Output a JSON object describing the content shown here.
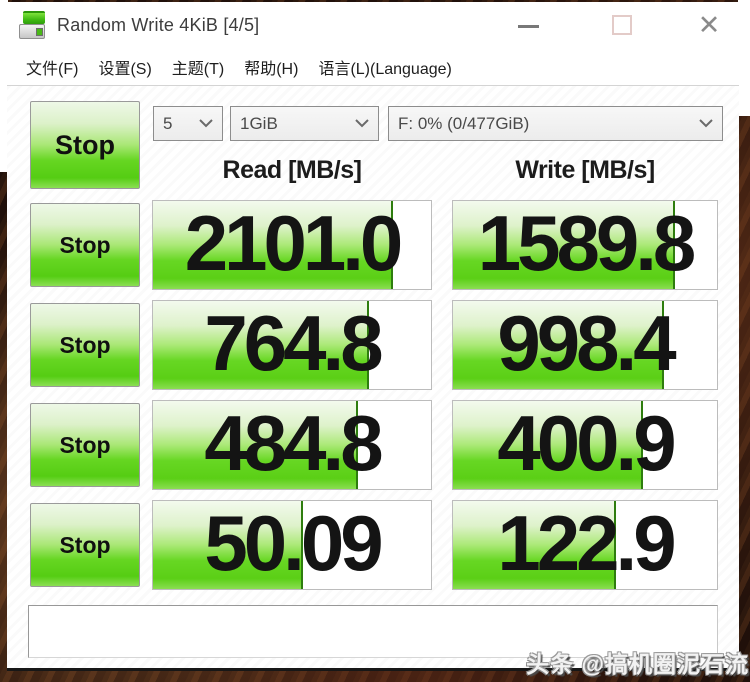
{
  "window": {
    "title": "Random Write 4KiB [4/5]",
    "buttons": {
      "minimize": "",
      "maximize": "",
      "close": "✕"
    }
  },
  "icons": {
    "app_icon": "diskmark-drive-icon",
    "dropdown_icon": "chevron-down-icon"
  },
  "menu": {
    "items": [
      "文件(F)",
      "设置(S)",
      "主题(T)",
      "帮助(H)",
      "语言(L)(Language)"
    ]
  },
  "controls": {
    "stop_label": "Stop",
    "test_count": "5",
    "test_size": "1GiB",
    "target_drive": "F: 0% (0/477GiB)"
  },
  "headers": {
    "read": "Read [MB/s]",
    "write": "Write [MB/s]"
  },
  "results": {
    "unit": "MB/s",
    "rows": [
      {
        "stop_label": "Stop",
        "read": "2101.0",
        "write": "1589.8"
      },
      {
        "stop_label": "Stop",
        "read": "764.8",
        "write": "998.4"
      },
      {
        "stop_label": "Stop",
        "read": "484.8",
        "write": "400.9"
      },
      {
        "stop_label": "Stop",
        "read": "50.09",
        "write": "122.9"
      }
    ]
  },
  "comment_box": {
    "value": "",
    "placeholder": ""
  },
  "watermark": {
    "text": "头条 @搞机圈泥石流"
  },
  "colors": {
    "accent_green": "#5ed31c",
    "fill_edge_green": "#2e7d0e",
    "title_text": "#3d3d3d",
    "background_photo": "#2a170d"
  }
}
